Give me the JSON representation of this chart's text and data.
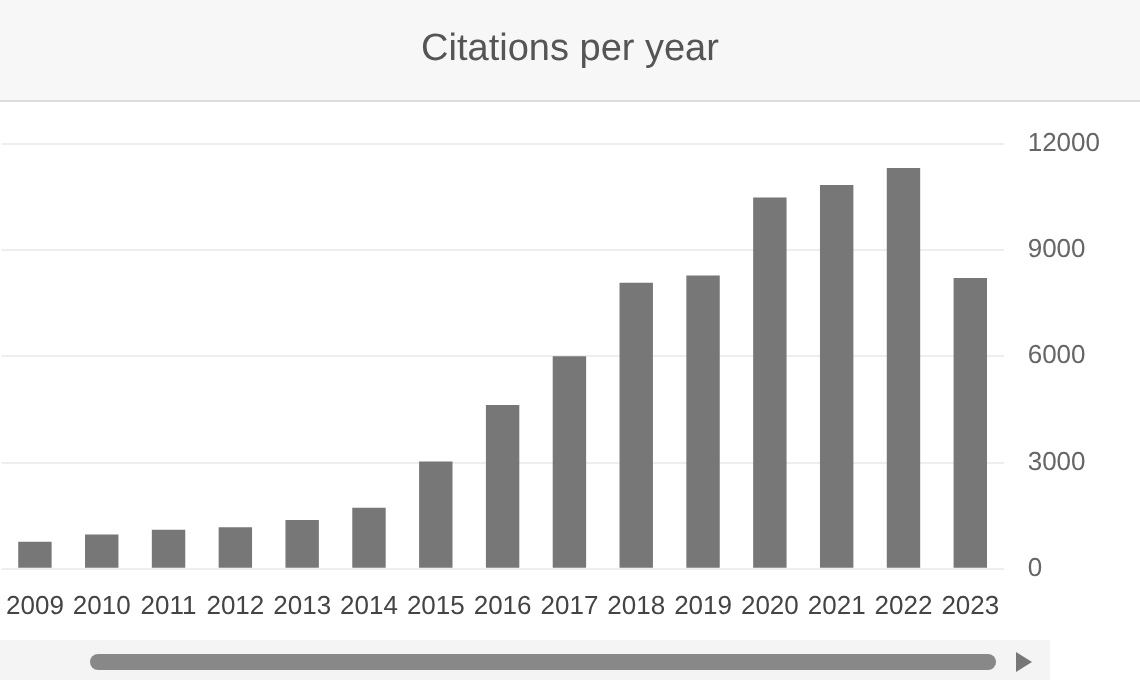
{
  "chart_data": {
    "type": "bar",
    "title": "Citations per year",
    "categories": [
      "2009",
      "2010",
      "2011",
      "2012",
      "2013",
      "2014",
      "2015",
      "2016",
      "2017",
      "2018",
      "2019",
      "2020",
      "2021",
      "2022",
      "2023"
    ],
    "values": [
      760,
      970,
      1100,
      1170,
      1380,
      1720,
      3030,
      4620,
      6000,
      8070,
      8280,
      10480,
      10830,
      11310,
      8210
    ],
    "color": "#777777",
    "ylim": [
      0,
      12000
    ],
    "yticks": [
      0,
      3000,
      6000,
      9000,
      12000
    ],
    "grid": "y"
  }
}
